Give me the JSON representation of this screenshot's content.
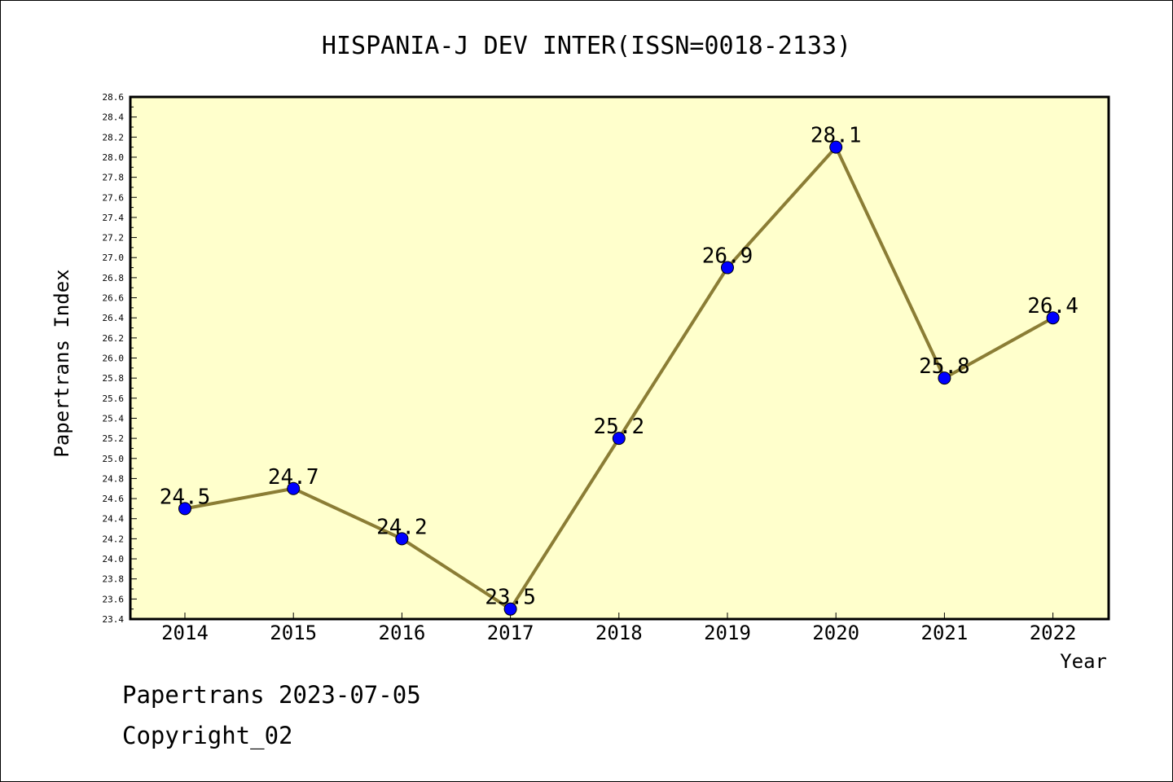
{
  "chart_data": {
    "type": "line",
    "title": "HISPANIA-J DEV INTER(ISSN=0018-2133)",
    "xlabel": "Year",
    "ylabel": "Papertrans Index",
    "categories": [
      "2014",
      "2015",
      "2016",
      "2017",
      "2018",
      "2019",
      "2020",
      "2021",
      "2022"
    ],
    "series": [
      {
        "values": [
          24.5,
          24.7,
          24.2,
          23.5,
          25.2,
          26.9,
          28.1,
          25.8,
          26.4
        ]
      }
    ],
    "data_labels": [
      "24.5",
      "24.7",
      "24.2",
      "23.5",
      "25.2",
      "26.9",
      "28.1",
      "25.8",
      "26.4"
    ],
    "ylim": [
      23.4,
      28.6
    ],
    "yticks": [
      "23.4",
      "23.6",
      "23.8",
      "24.0",
      "24.2",
      "24.4",
      "24.6",
      "24.8",
      "25.0",
      "25.2",
      "25.4",
      "25.6",
      "25.8",
      "26.0",
      "26.2",
      "26.4",
      "26.6",
      "26.8",
      "27.0",
      "27.2",
      "27.4",
      "27.6",
      "27.8",
      "28.0",
      "28.2",
      "28.4",
      "28.6"
    ],
    "grid": false,
    "colors": {
      "plot_background": "#ffffcc",
      "line": "#8b7d35",
      "marker": "#0000ff"
    }
  },
  "footer": {
    "date_line": "Papertrans 2023-07-05",
    "copyright_line": "Copyright_02"
  }
}
